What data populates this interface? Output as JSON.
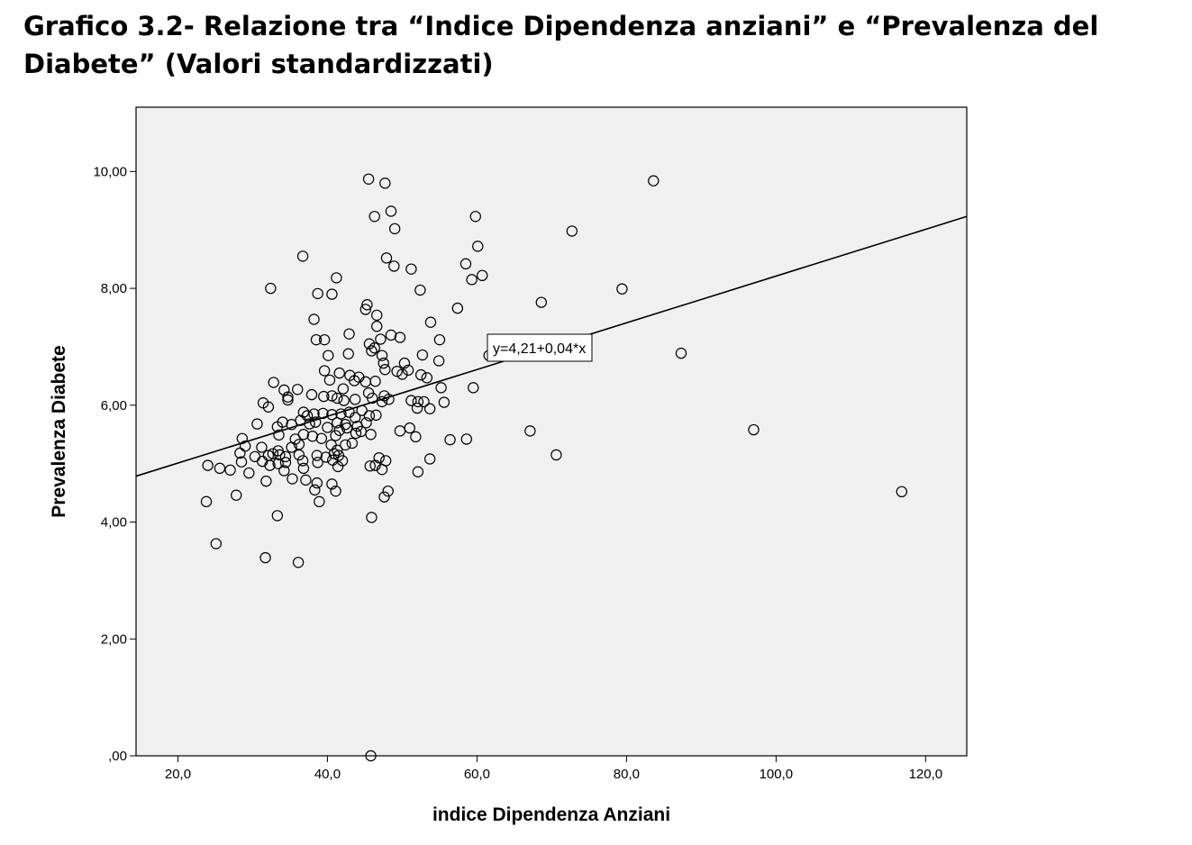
{
  "title": {
    "line1": "Grafico 3.2- Relazione tra “Indice Dipendenza anziani” e “Prevalenza del",
    "line2": "Diabete” (Valori standardizzati)"
  },
  "chart_data": {
    "type": "scatter",
    "xlabel": "indice Dipendenza Anziani",
    "ylabel": "Prevalenza Diabete",
    "xlim": [
      14.4,
      125.5
    ],
    "ylim": [
      0,
      11.1
    ],
    "xticks": [
      20,
      40,
      60,
      80,
      100,
      120
    ],
    "xtick_labels": [
      "20,0",
      "40,0",
      "60,0",
      "80,0",
      "100,0",
      "120,0"
    ],
    "yticks": [
      0,
      2,
      4,
      6,
      8,
      10
    ],
    "ytick_labels": [
      ",00",
      "2,00",
      "4,00",
      "6,00",
      "8,00",
      "10,00"
    ],
    "regression": {
      "intercept": 4.21,
      "slope": 0.04,
      "label": "y=4,21+0,04*x"
    },
    "points": [
      [
        45.5,
        9.87
      ],
      [
        47.7,
        9.8
      ],
      [
        48.5,
        9.32
      ],
      [
        46.3,
        9.23
      ],
      [
        49.0,
        9.02
      ],
      [
        59.8,
        9.23
      ],
      [
        60.1,
        8.72
      ],
      [
        72.7,
        8.98
      ],
      [
        83.6,
        9.84
      ],
      [
        36.7,
        8.55
      ],
      [
        47.9,
        8.52
      ],
      [
        48.9,
        8.38
      ],
      [
        51.2,
        8.33
      ],
      [
        41.2,
        8.18
      ],
      [
        58.5,
        8.42
      ],
      [
        59.3,
        8.15
      ],
      [
        60.7,
        8.22
      ],
      [
        32.4,
        8.0
      ],
      [
        38.7,
        7.91
      ],
      [
        40.6,
        7.9
      ],
      [
        52.4,
        7.97
      ],
      [
        79.4,
        7.99
      ],
      [
        45.3,
        7.72
      ],
      [
        68.6,
        7.76
      ],
      [
        57.4,
        7.66
      ],
      [
        45.1,
        7.64
      ],
      [
        46.6,
        7.54
      ],
      [
        38.2,
        7.47
      ],
      [
        46.6,
        7.35
      ],
      [
        53.8,
        7.42
      ],
      [
        42.9,
        7.22
      ],
      [
        48.5,
        7.2
      ],
      [
        49.7,
        7.16
      ],
      [
        38.5,
        7.12
      ],
      [
        39.6,
        7.12
      ],
      [
        47.1,
        7.13
      ],
      [
        45.6,
        7.05
      ],
      [
        55.0,
        7.12
      ],
      [
        46.3,
        6.98
      ],
      [
        40.1,
        6.85
      ],
      [
        42.8,
        6.88
      ],
      [
        45.9,
        6.93
      ],
      [
        47.3,
        6.85
      ],
      [
        52.7,
        6.86
      ],
      [
        47.5,
        6.72
      ],
      [
        50.3,
        6.72
      ],
      [
        54.9,
        6.76
      ],
      [
        87.3,
        6.89
      ],
      [
        61.6,
        6.85
      ],
      [
        39.6,
        6.59
      ],
      [
        41.6,
        6.55
      ],
      [
        43.0,
        6.51
      ],
      [
        44.2,
        6.48
      ],
      [
        47.7,
        6.61
      ],
      [
        49.3,
        6.58
      ],
      [
        50.0,
        6.53
      ],
      [
        50.8,
        6.6
      ],
      [
        52.5,
        6.52
      ],
      [
        53.3,
        6.47
      ],
      [
        40.3,
        6.43
      ],
      [
        43.6,
        6.42
      ],
      [
        45.1,
        6.4
      ],
      [
        46.4,
        6.41
      ],
      [
        32.8,
        6.39
      ],
      [
        34.2,
        6.26
      ],
      [
        36.0,
        6.27
      ],
      [
        42.1,
        6.28
      ],
      [
        45.5,
        6.21
      ],
      [
        47.6,
        6.16
      ],
      [
        55.2,
        6.3
      ],
      [
        59.5,
        6.3
      ],
      [
        31.4,
        6.04
      ],
      [
        32.1,
        5.97
      ],
      [
        34.7,
        6.14
      ],
      [
        34.7,
        6.09
      ],
      [
        37.9,
        6.18
      ],
      [
        39.5,
        6.15
      ],
      [
        40.6,
        6.16
      ],
      [
        41.3,
        6.12
      ],
      [
        42.2,
        6.08
      ],
      [
        43.7,
        6.1
      ],
      [
        46.0,
        6.12
      ],
      [
        47.3,
        6.06
      ],
      [
        48.2,
        6.1
      ],
      [
        51.2,
        6.08
      ],
      [
        52.1,
        6.06
      ],
      [
        52.9,
        6.06
      ],
      [
        55.6,
        6.05
      ],
      [
        52.0,
        5.95
      ],
      [
        53.7,
        5.94
      ],
      [
        36.8,
        5.88
      ],
      [
        37.3,
        5.82
      ],
      [
        38.2,
        5.85
      ],
      [
        39.4,
        5.86
      ],
      [
        40.6,
        5.84
      ],
      [
        41.8,
        5.85
      ],
      [
        42.9,
        5.88
      ],
      [
        43.7,
        5.79
      ],
      [
        44.6,
        5.91
      ],
      [
        45.6,
        5.82
      ],
      [
        46.5,
        5.83
      ],
      [
        30.6,
        5.68
      ],
      [
        33.3,
        5.63
      ],
      [
        34.0,
        5.71
      ],
      [
        35.2,
        5.67
      ],
      [
        36.4,
        5.74
      ],
      [
        37.6,
        5.68
      ],
      [
        38.4,
        5.71
      ],
      [
        41.3,
        5.7
      ],
      [
        42.4,
        5.67
      ],
      [
        44.0,
        5.64
      ],
      [
        45.2,
        5.7
      ],
      [
        40.0,
        5.62
      ],
      [
        41.6,
        5.57
      ],
      [
        42.6,
        5.61
      ],
      [
        44.5,
        5.55
      ],
      [
        49.7,
        5.56
      ],
      [
        51.0,
        5.61
      ],
      [
        67.1,
        5.56
      ],
      [
        97.0,
        5.58
      ],
      [
        28.6,
        5.43
      ],
      [
        33.5,
        5.49
      ],
      [
        35.7,
        5.42
      ],
      [
        36.8,
        5.5
      ],
      [
        38.0,
        5.47
      ],
      [
        39.2,
        5.43
      ],
      [
        41.1,
        5.48
      ],
      [
        43.8,
        5.52
      ],
      [
        45.8,
        5.5
      ],
      [
        51.8,
        5.46
      ],
      [
        56.4,
        5.41
      ],
      [
        58.6,
        5.42
      ],
      [
        29.0,
        5.3
      ],
      [
        31.2,
        5.28
      ],
      [
        33.4,
        5.22
      ],
      [
        35.2,
        5.28
      ],
      [
        36.2,
        5.33
      ],
      [
        40.5,
        5.32
      ],
      [
        42.4,
        5.32
      ],
      [
        43.3,
        5.35
      ],
      [
        41.3,
        5.23
      ],
      [
        28.3,
        5.18
      ],
      [
        30.3,
        5.12
      ],
      [
        32.1,
        5.14
      ],
      [
        32.7,
        5.17
      ],
      [
        33.6,
        5.15
      ],
      [
        34.4,
        5.12
      ],
      [
        36.2,
        5.15
      ],
      [
        38.6,
        5.14
      ],
      [
        39.8,
        5.11
      ],
      [
        40.9,
        5.17
      ],
      [
        41.5,
        5.14
      ],
      [
        70.6,
        5.15
      ],
      [
        28.5,
        5.03
      ],
      [
        31.3,
        5.04
      ],
      [
        32.3,
        4.97
      ],
      [
        33.4,
        5.0
      ],
      [
        34.4,
        5.02
      ],
      [
        36.7,
        5.05
      ],
      [
        38.7,
        5.02
      ],
      [
        40.7,
        5.06
      ],
      [
        42.0,
        5.05
      ],
      [
        46.9,
        5.1
      ],
      [
        47.8,
        5.05
      ],
      [
        53.7,
        5.08
      ],
      [
        24.0,
        4.97
      ],
      [
        25.6,
        4.92
      ],
      [
        27.0,
        4.89
      ],
      [
        29.5,
        4.84
      ],
      [
        34.2,
        4.88
      ],
      [
        36.8,
        4.92
      ],
      [
        41.4,
        4.95
      ],
      [
        45.7,
        4.96
      ],
      [
        46.4,
        4.97
      ],
      [
        47.3,
        4.9
      ],
      [
        52.1,
        4.86
      ],
      [
        31.8,
        4.7
      ],
      [
        35.3,
        4.74
      ],
      [
        37.1,
        4.72
      ],
      [
        38.6,
        4.67
      ],
      [
        40.6,
        4.65
      ],
      [
        38.3,
        4.55
      ],
      [
        41.1,
        4.53
      ],
      [
        48.1,
        4.53
      ],
      [
        47.6,
        4.43
      ],
      [
        23.8,
        4.35
      ],
      [
        27.8,
        4.46
      ],
      [
        38.9,
        4.35
      ],
      [
        33.3,
        4.11
      ],
      [
        45.9,
        4.08
      ],
      [
        116.8,
        4.52
      ],
      [
        25.1,
        3.63
      ],
      [
        31.7,
        3.39
      ],
      [
        36.1,
        3.31
      ],
      [
        45.8,
        0.0
      ]
    ]
  }
}
